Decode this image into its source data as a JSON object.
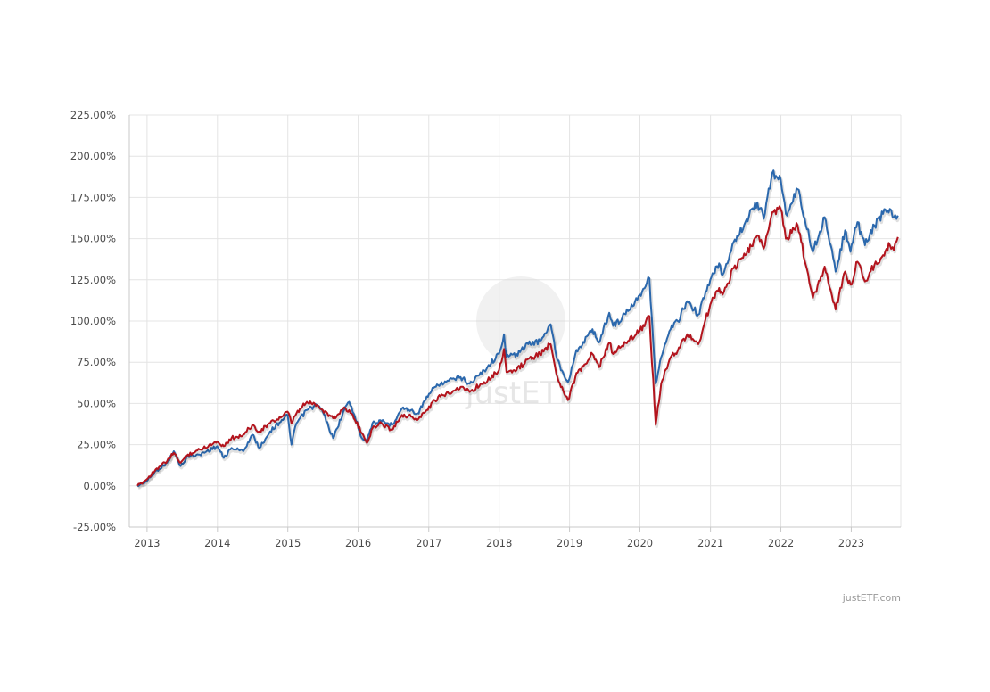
{
  "credit": "justETF.com",
  "watermark": "justETF",
  "colors": {
    "series_a": "#2b68ad",
    "series_b": "#b3141d",
    "grid": "#e4e4e4",
    "axis": "#c9c9c9",
    "label": "#4a4a4a",
    "credit": "#999999"
  },
  "chart_data": {
    "type": "line",
    "title": "",
    "xlabel": "",
    "ylabel": "",
    "x_axis_type": "date",
    "xlim": [
      "2012-10-01",
      "2023-09-15"
    ],
    "ylim": [
      -25,
      225
    ],
    "y_ticks": [
      -25,
      0,
      25,
      50,
      75,
      100,
      125,
      150,
      175,
      200,
      225
    ],
    "y_tick_labels": [
      "-25.00%",
      "0.00%",
      "25.00%",
      "50.00%",
      "75.00%",
      "100.00%",
      "125.00%",
      "150.00%",
      "175.00%",
      "200.00%",
      "225.00%"
    ],
    "x_tick_labels": [
      "2013",
      "2014",
      "2015",
      "2016",
      "2017",
      "2018",
      "2019",
      "2020",
      "2021",
      "2022",
      "2023"
    ],
    "grid": true,
    "legend": "none",
    "series": [
      {
        "color": "#2b68ad",
        "points": [
          [
            "2012-11-12",
            0
          ],
          [
            "2012-12-31",
            3
          ],
          [
            "2013-02-15",
            9
          ],
          [
            "2013-04-15",
            14
          ],
          [
            "2013-05-20",
            21
          ],
          [
            "2013-06-24",
            12
          ],
          [
            "2013-08-01",
            18
          ],
          [
            "2013-10-01",
            19
          ],
          [
            "2013-12-31",
            24
          ],
          [
            "2014-02-03",
            17
          ],
          [
            "2014-03-15",
            23
          ],
          [
            "2014-05-15",
            21
          ],
          [
            "2014-07-01",
            31
          ],
          [
            "2014-08-07",
            23
          ],
          [
            "2014-10-01",
            33
          ],
          [
            "2014-12-01",
            40
          ],
          [
            "2014-12-31",
            43
          ],
          [
            "2015-01-20",
            25
          ],
          [
            "2015-02-15",
            38
          ],
          [
            "2015-04-10",
            46
          ],
          [
            "2015-06-01",
            49
          ],
          [
            "2015-07-01",
            45
          ],
          [
            "2015-08-24",
            29
          ],
          [
            "2015-09-15",
            35
          ],
          [
            "2015-10-15",
            45
          ],
          [
            "2015-11-15",
            51
          ],
          [
            "2015-12-15",
            42
          ],
          [
            "2016-01-20",
            29
          ],
          [
            "2016-02-15",
            28
          ],
          [
            "2016-03-15",
            38
          ],
          [
            "2016-05-01",
            39
          ],
          [
            "2016-06-24",
            37
          ],
          [
            "2016-08-15",
            47
          ],
          [
            "2016-10-01",
            46
          ],
          [
            "2016-11-04",
            44
          ],
          [
            "2016-12-15",
            52
          ],
          [
            "2017-02-01",
            60
          ],
          [
            "2017-04-01",
            63
          ],
          [
            "2017-06-15",
            66
          ],
          [
            "2017-08-01",
            62
          ],
          [
            "2017-10-15",
            70
          ],
          [
            "2017-12-31",
            80
          ],
          [
            "2018-01-26",
            92
          ],
          [
            "2018-02-08",
            78
          ],
          [
            "2018-04-01",
            80
          ],
          [
            "2018-06-01",
            86
          ],
          [
            "2018-08-01",
            88
          ],
          [
            "2018-09-25",
            98
          ],
          [
            "2018-10-30",
            76
          ],
          [
            "2018-12-24",
            63
          ],
          [
            "2019-01-31",
            80
          ],
          [
            "2019-04-30",
            95
          ],
          [
            "2019-06-03",
            87
          ],
          [
            "2019-07-26",
            105
          ],
          [
            "2019-08-15",
            97
          ],
          [
            "2019-10-01",
            102
          ],
          [
            "2019-12-31",
            116
          ],
          [
            "2020-02-19",
            126
          ],
          [
            "2020-03-23",
            62
          ],
          [
            "2020-04-20",
            78
          ],
          [
            "2020-06-08",
            95
          ],
          [
            "2020-07-15",
            100
          ],
          [
            "2020-09-02",
            112
          ],
          [
            "2020-10-30",
            104
          ],
          [
            "2020-12-31",
            125
          ],
          [
            "2021-02-15",
            135
          ],
          [
            "2021-03-05",
            128
          ],
          [
            "2021-05-01",
            148
          ],
          [
            "2021-07-01",
            160
          ],
          [
            "2021-09-01",
            172
          ],
          [
            "2021-10-04",
            162
          ],
          [
            "2021-11-18",
            190
          ],
          [
            "2021-12-31",
            186
          ],
          [
            "2022-01-27",
            165
          ],
          [
            "2022-03-29",
            180
          ],
          [
            "2022-06-16",
            142
          ],
          [
            "2022-08-16",
            163
          ],
          [
            "2022-10-12",
            130
          ],
          [
            "2022-11-30",
            155
          ],
          [
            "2022-12-28",
            142
          ],
          [
            "2023-02-02",
            160
          ],
          [
            "2023-03-13",
            146
          ],
          [
            "2023-05-01",
            158
          ],
          [
            "2023-06-15",
            165
          ],
          [
            "2023-07-20",
            168
          ],
          [
            "2023-08-10",
            163
          ],
          [
            "2023-08-31",
            164
          ]
        ]
      },
      {
        "color": "#b3141d",
        "points": [
          [
            "2012-11-12",
            0
          ],
          [
            "2012-12-31",
            4
          ],
          [
            "2013-02-15",
            10
          ],
          [
            "2013-04-15",
            15
          ],
          [
            "2013-05-20",
            20
          ],
          [
            "2013-06-24",
            14
          ],
          [
            "2013-08-01",
            19
          ],
          [
            "2013-10-01",
            22
          ],
          [
            "2013-12-31",
            27
          ],
          [
            "2014-02-03",
            24
          ],
          [
            "2014-03-15",
            29
          ],
          [
            "2014-05-15",
            31
          ],
          [
            "2014-07-01",
            37
          ],
          [
            "2014-08-07",
            33
          ],
          [
            "2014-10-01",
            38
          ],
          [
            "2014-12-01",
            42
          ],
          [
            "2014-12-31",
            45
          ],
          [
            "2015-01-20",
            38
          ],
          [
            "2015-02-15",
            44
          ],
          [
            "2015-04-10",
            51
          ],
          [
            "2015-06-01",
            49
          ],
          [
            "2015-07-01",
            46
          ],
          [
            "2015-08-24",
            41
          ],
          [
            "2015-09-15",
            43
          ],
          [
            "2015-10-15",
            47
          ],
          [
            "2015-11-15",
            46
          ],
          [
            "2015-12-15",
            40
          ],
          [
            "2016-01-20",
            32
          ],
          [
            "2016-02-15",
            26
          ],
          [
            "2016-03-15",
            35
          ],
          [
            "2016-05-01",
            38
          ],
          [
            "2016-06-24",
            34
          ],
          [
            "2016-08-15",
            43
          ],
          [
            "2016-10-01",
            42
          ],
          [
            "2016-11-04",
            40
          ],
          [
            "2016-12-15",
            45
          ],
          [
            "2017-02-01",
            52
          ],
          [
            "2017-04-01",
            56
          ],
          [
            "2017-06-15",
            60
          ],
          [
            "2017-08-01",
            57
          ],
          [
            "2017-10-15",
            63
          ],
          [
            "2017-12-31",
            70
          ],
          [
            "2018-01-26",
            83
          ],
          [
            "2018-02-08",
            69
          ],
          [
            "2018-04-01",
            70
          ],
          [
            "2018-06-01",
            77
          ],
          [
            "2018-08-01",
            80
          ],
          [
            "2018-09-25",
            86
          ],
          [
            "2018-10-30",
            66
          ],
          [
            "2018-12-24",
            52
          ],
          [
            "2019-01-31",
            66
          ],
          [
            "2019-04-30",
            80
          ],
          [
            "2019-06-03",
            72
          ],
          [
            "2019-07-26",
            87
          ],
          [
            "2019-08-15",
            80
          ],
          [
            "2019-10-01",
            85
          ],
          [
            "2019-12-31",
            94
          ],
          [
            "2020-02-19",
            103
          ],
          [
            "2020-03-23",
            37
          ],
          [
            "2020-04-20",
            62
          ],
          [
            "2020-06-08",
            78
          ],
          [
            "2020-07-15",
            82
          ],
          [
            "2020-09-02",
            92
          ],
          [
            "2020-10-30",
            86
          ],
          [
            "2020-12-31",
            110
          ],
          [
            "2021-02-15",
            120
          ],
          [
            "2021-03-05",
            116
          ],
          [
            "2021-05-01",
            132
          ],
          [
            "2021-07-01",
            140
          ],
          [
            "2021-09-01",
            152
          ],
          [
            "2021-10-04",
            144
          ],
          [
            "2021-11-18",
            166
          ],
          [
            "2021-12-31",
            168
          ],
          [
            "2022-01-27",
            150
          ],
          [
            "2022-03-29",
            158
          ],
          [
            "2022-06-16",
            114
          ],
          [
            "2022-08-16",
            133
          ],
          [
            "2022-10-12",
            107
          ],
          [
            "2022-11-30",
            130
          ],
          [
            "2022-12-28",
            122
          ],
          [
            "2023-02-02",
            136
          ],
          [
            "2023-03-13",
            124
          ],
          [
            "2023-05-01",
            134
          ],
          [
            "2023-06-15",
            140
          ],
          [
            "2023-07-20",
            146
          ],
          [
            "2023-08-10",
            143
          ],
          [
            "2023-08-31",
            151
          ]
        ]
      }
    ]
  }
}
